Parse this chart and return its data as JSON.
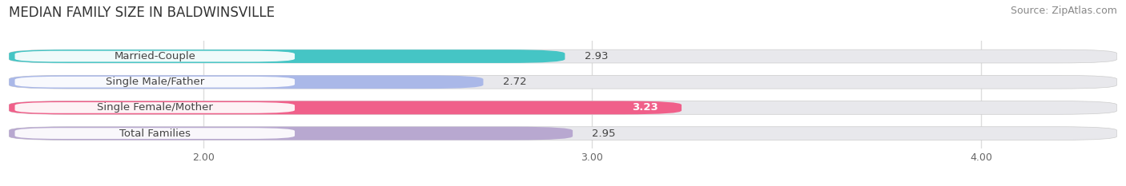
{
  "title": "MEDIAN FAMILY SIZE IN BALDWINSVILLE",
  "source": "Source: ZipAtlas.com",
  "categories": [
    "Married-Couple",
    "Single Male/Father",
    "Single Female/Mother",
    "Total Families"
  ],
  "values": [
    2.93,
    2.72,
    3.23,
    2.95
  ],
  "bar_colors": [
    "#45c5c5",
    "#aab8e8",
    "#f0608a",
    "#b8a8d0"
  ],
  "bar_bg_color": "#e8e8ec",
  "xlim_left": 1.5,
  "xlim_right": 4.35,
  "x_min": 1.5,
  "x_max": 4.35,
  "xticks": [
    2.0,
    3.0,
    4.0
  ],
  "xtick_labels": [
    "2.00",
    "3.00",
    "4.00"
  ],
  "title_fontsize": 12,
  "source_fontsize": 9,
  "label_fontsize": 9.5,
  "value_fontsize": 9.5,
  "background_color": "#ffffff",
  "label_pill_color": "#ffffff",
  "label_text_color": "#444444",
  "value_color_dark": "#444444",
  "value_color_white": "#ffffff",
  "grid_color": "#dddddd"
}
